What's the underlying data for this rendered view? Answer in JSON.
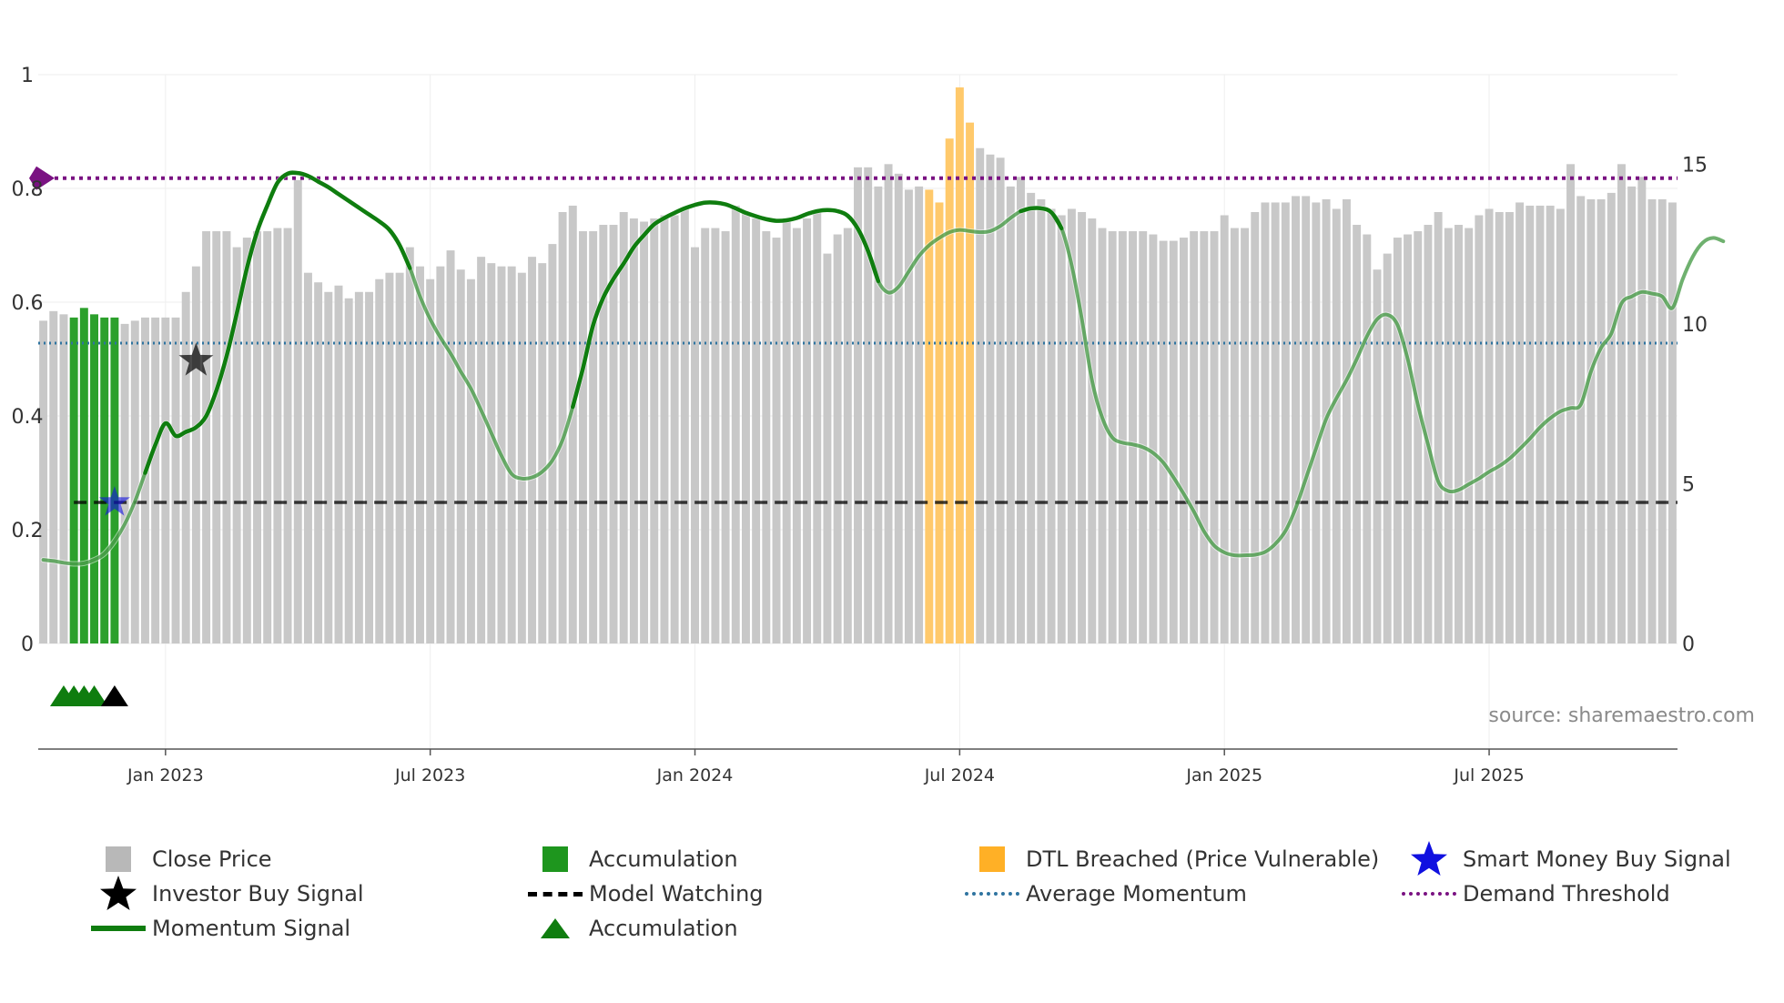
{
  "chart_data": {
    "type": "bar+line",
    "title": "",
    "source_label": "source: sharemaestro.com",
    "x_ticks": [
      "Jan 2023",
      "Jul 2023",
      "Jan 2024",
      "Jul 2024",
      "Jan 2025",
      "Jul 2025"
    ],
    "x_tick_week_index": [
      12,
      38,
      64,
      90,
      116,
      142
    ],
    "left_axis": {
      "ticks": [
        "0",
        "0.2",
        "0.4",
        "0.6",
        "0.8",
        "1"
      ],
      "range": [
        0,
        1
      ]
    },
    "right_axis": {
      "ticks": [
        "0",
        "5",
        "10",
        "15"
      ],
      "range": [
        0,
        17.8
      ]
    },
    "close_price": [
      10.1,
      10.4,
      10.3,
      10.2,
      10.5,
      10.3,
      10.2,
      10.2,
      10.0,
      10.1,
      10.2,
      10.2,
      10.2,
      10.2,
      11.0,
      11.8,
      12.9,
      12.9,
      12.9,
      12.4,
      12.7,
      12.9,
      12.9,
      13.0,
      13.0,
      14.5,
      11.6,
      11.3,
      11.0,
      11.2,
      10.8,
      11.0,
      11.0,
      11.4,
      11.6,
      11.6,
      12.4,
      11.8,
      11.4,
      11.8,
      12.3,
      11.7,
      11.4,
      12.1,
      11.9,
      11.8,
      11.8,
      11.6,
      12.1,
      11.9,
      12.5,
      13.5,
      13.7,
      12.9,
      12.9,
      13.1,
      13.1,
      13.5,
      13.3,
      13.2,
      13.3,
      13.4,
      13.4,
      13.6,
      12.4,
      13.0,
      13.0,
      12.9,
      13.7,
      13.5,
      13.3,
      12.9,
      12.7,
      13.3,
      13.0,
      13.3,
      13.5,
      12.2,
      12.8,
      13.0,
      14.9,
      14.9,
      14.3,
      15.0,
      14.7,
      14.2,
      14.3,
      14.2,
      13.8,
      15.8,
      17.4,
      16.3,
      15.5,
      15.3,
      15.2,
      14.3,
      14.6,
      14.1,
      13.9,
      13.6,
      13.4,
      13.6,
      13.5,
      13.3,
      13.0,
      12.9,
      12.9,
      12.9,
      12.9,
      12.8,
      12.6,
      12.6,
      12.7,
      12.9,
      12.9,
      12.9,
      13.4,
      13.0,
      13.0,
      13.5,
      13.8,
      13.8,
      13.8,
      14.0,
      14.0,
      13.8,
      13.9,
      13.6,
      13.9,
      13.1,
      12.8,
      11.7,
      12.2,
      12.7,
      12.8,
      12.9,
      13.1,
      13.5,
      13.0,
      13.1,
      13.0,
      13.4,
      13.6,
      13.5,
      13.5,
      13.8,
      13.7,
      13.7,
      13.7,
      13.6,
      15.0,
      14.0,
      13.9,
      13.9,
      14.1,
      15.0,
      14.3,
      14.6,
      13.9,
      13.9,
      13.8
    ],
    "bar_highlights": [
      {
        "name": "Accumulation",
        "color": "#2ca02c",
        "week_range": [
          3,
          7
        ]
      },
      {
        "name": "DTL Breached (Price Vulnerable)",
        "color": "#ffc96b",
        "week_range": [
          87,
          91
        ]
      }
    ],
    "momentum_signal": [
      0.147,
      0.145,
      0.142,
      0.14,
      0.141,
      0.147,
      0.158,
      0.18,
      0.21,
      0.25,
      0.3,
      0.349,
      0.387,
      0.365,
      0.372,
      0.38,
      0.4,
      0.445,
      0.505,
      0.58,
      0.66,
      0.724,
      0.77,
      0.81,
      0.826,
      0.827,
      0.822,
      0.812,
      0.802,
      0.79,
      0.778,
      0.766,
      0.754,
      0.742,
      0.727,
      0.7,
      0.66,
      0.61,
      0.57,
      0.538,
      0.51,
      0.478,
      0.448,
      0.41,
      0.37,
      0.33,
      0.298,
      0.29,
      0.292,
      0.302,
      0.322,
      0.358,
      0.416,
      0.484,
      0.56,
      0.608,
      0.641,
      0.668,
      0.697,
      0.718,
      0.737,
      0.748,
      0.757,
      0.765,
      0.771,
      0.775,
      0.775,
      0.772,
      0.765,
      0.757,
      0.751,
      0.746,
      0.743,
      0.744,
      0.748,
      0.755,
      0.76,
      0.762,
      0.76,
      0.752,
      0.729,
      0.69,
      0.637,
      0.617,
      0.627,
      0.654,
      0.681,
      0.7,
      0.713,
      0.723,
      0.727,
      0.725,
      0.723,
      0.725,
      0.734,
      0.748,
      0.76,
      0.765,
      0.765,
      0.758,
      0.73,
      0.665,
      0.57,
      0.462,
      0.397,
      0.362,
      0.353,
      0.35,
      0.345,
      0.335,
      0.318,
      0.292,
      0.263,
      0.232,
      0.197,
      0.172,
      0.16,
      0.155,
      0.155,
      0.156,
      0.161,
      0.175,
      0.198,
      0.238,
      0.29,
      0.343,
      0.395,
      0.431,
      0.463,
      0.5,
      0.54,
      0.57,
      0.578,
      0.56,
      0.5,
      0.42,
      0.35,
      0.285,
      0.268,
      0.27,
      0.28,
      0.29,
      0.302,
      0.312,
      0.325,
      0.342,
      0.36,
      0.38,
      0.396,
      0.408,
      0.414,
      0.42,
      0.478,
      0.52,
      0.545,
      0.598,
      0.61,
      0.618,
      0.615,
      0.61,
      0.59,
      0.64,
      0.68,
      0.705,
      0.713,
      0.707
    ],
    "momentum_bright_ranges": [
      [
        10,
        36
      ],
      [
        52,
        82
      ],
      [
        96,
        100
      ]
    ],
    "average_momentum": 0.528,
    "demand_threshold": 0.818,
    "model_watching": {
      "value": 0.248,
      "from_week": 3
    },
    "investor_buy_signal": {
      "week": 15,
      "value": 0.497
    },
    "smart_money_buy_signal": {
      "week": 7,
      "value": 0.248
    },
    "accumulation_markers": [
      {
        "week": 2,
        "color": "#0f7d0f"
      },
      {
        "week": 3,
        "color": "#0f7d0f"
      },
      {
        "week": 4,
        "color": "#0f7d0f"
      },
      {
        "week": 5,
        "color": "#0f7d0f"
      },
      {
        "week": 7,
        "color": "#000000"
      }
    ],
    "threshold_marker": {
      "value": 0.818,
      "color": "#7a1282"
    },
    "legend": [
      {
        "key": "close_price",
        "label": "Close Price"
      },
      {
        "key": "accumulation_bar",
        "label": "Accumulation"
      },
      {
        "key": "dtl",
        "label": "DTL Breached (Price Vulnerable)"
      },
      {
        "key": "smart_money",
        "label": "Smart Money Buy Signal"
      },
      {
        "key": "investor_buy",
        "label": "Investor Buy Signal"
      },
      {
        "key": "model_watching",
        "label": "Model Watching"
      },
      {
        "key": "avg_momentum",
        "label": "Average Momentum"
      },
      {
        "key": "demand_threshold",
        "label": "Demand Threshold"
      },
      {
        "key": "momentum_signal",
        "label": "Momentum Signal"
      },
      {
        "key": "accumulation_marker",
        "label": "Accumulation"
      }
    ],
    "colors": {
      "close_price": "#c8c8c8",
      "accumulation": "#2ca02c",
      "dtl": "#ffc96b",
      "momentum": "#0f7d0f",
      "average_momentum": "#2f74a0",
      "demand_threshold": "#7a1282",
      "model_watching": "#000000",
      "smart_money": "#1010e0",
      "investor_buy": "#000000"
    }
  }
}
